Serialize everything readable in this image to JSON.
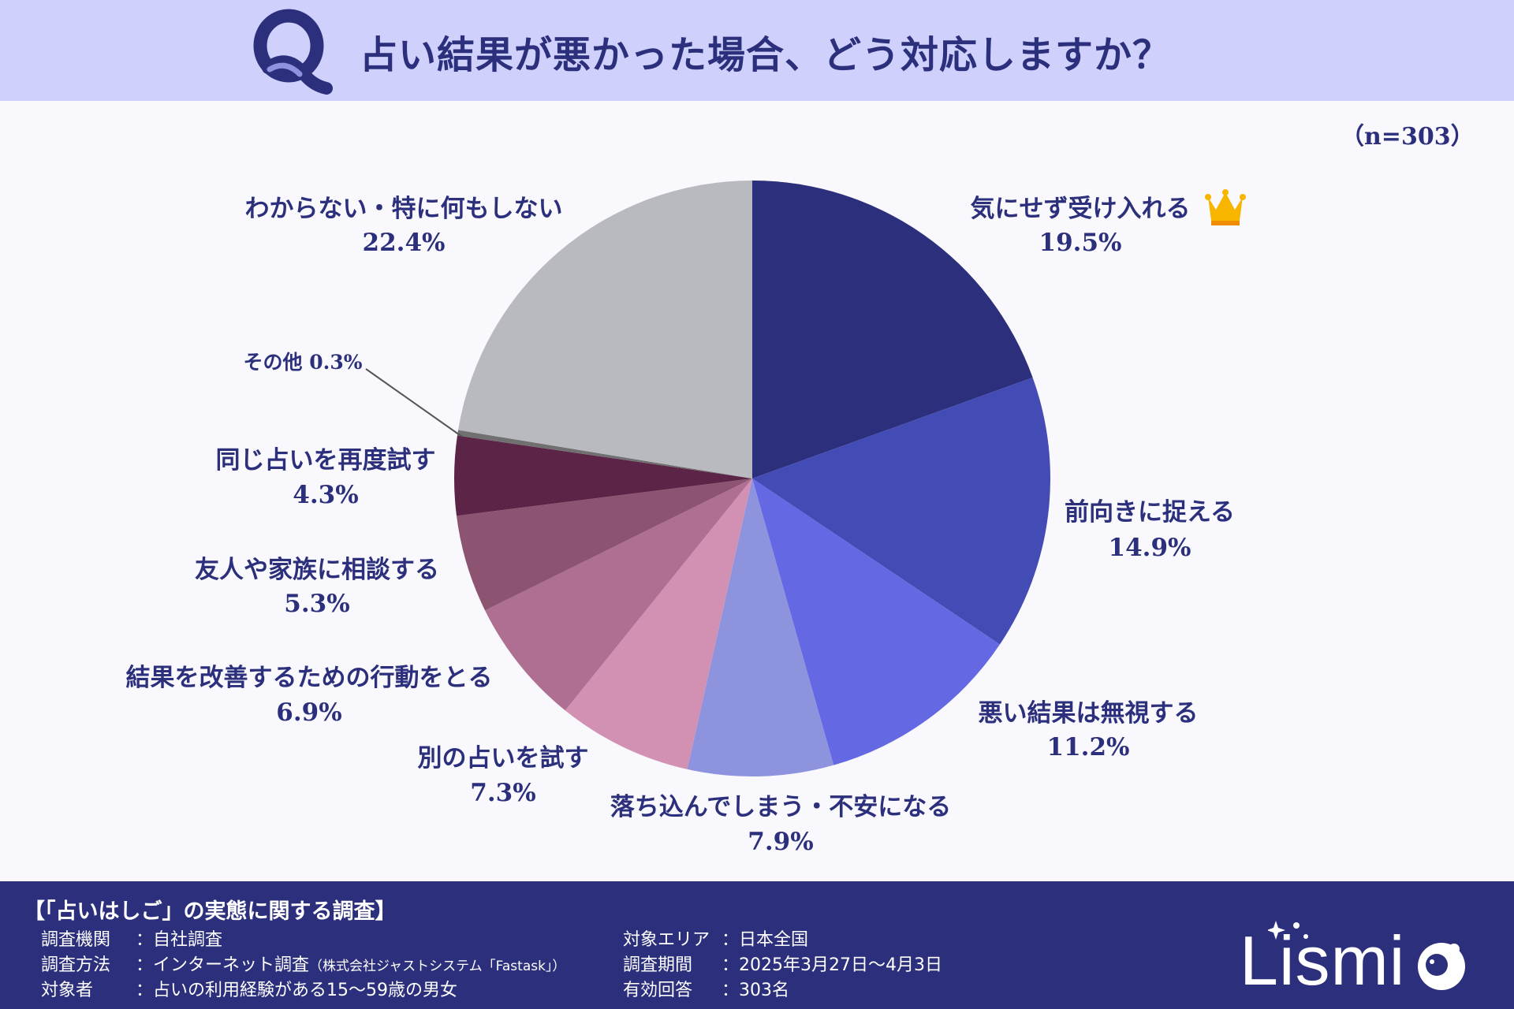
{
  "header": {
    "title": "占い結果が悪かった場合、どう対応しますか？"
  },
  "sample": "（n=303）",
  "chart_data": {
    "type": "pie",
    "start_angle": "12 o'clock",
    "direction": "clockwise",
    "slices": [
      {
        "label": "気にせず受け入れる",
        "value": 19.5,
        "value_text": "19.5%",
        "color": "#2c307c",
        "crown": true
      },
      {
        "label": "前向きに捉える",
        "value": 14.9,
        "value_text": "14.9%",
        "color": "#434bb4"
      },
      {
        "label": "悪い結果は無視する",
        "value": 11.2,
        "value_text": "11.2%",
        "color": "#6468e3"
      },
      {
        "label": "落ち込んでしまう・不安になる",
        "value": 7.9,
        "value_text": "7.9%",
        "color": "#8e93de"
      },
      {
        "label": "別の占いを試す",
        "value": 7.3,
        "value_text": "7.3%",
        "color": "#d291b3"
      },
      {
        "label": "結果を改善するための行動をとる",
        "value": 6.9,
        "value_text": "6.9%",
        "color": "#ae6f92"
      },
      {
        "label": "友人や家族に相談する",
        "value": 5.3,
        "value_text": "5.3%",
        "color": "#8c5471"
      },
      {
        "label": "同じ占いを再度試す",
        "value": 4.3,
        "value_text": "4.3%",
        "color": "#5c2446"
      },
      {
        "label": "その他",
        "value": 0.3,
        "value_text": "0.3%",
        "color": "#707070",
        "inline": true
      },
      {
        "label": "わからない・特に何もしない",
        "value": 22.4,
        "value_text": "22.4%",
        "color": "#b9babf"
      }
    ]
  },
  "footer": {
    "survey_title": "【「占いはしご」の実態に関する調査】",
    "left": [
      {
        "key": "調査機関",
        "value": "：自社調査",
        "note": ""
      },
      {
        "key": "調査方法",
        "value": "：インターネット調査",
        "note": "（株式会社ジャストシステム「Fastask」）"
      },
      {
        "key": "対象者",
        "value": "：占いの利用経験がある15～59歳の男女",
        "note": ""
      }
    ],
    "right": [
      {
        "key": "対象エリア",
        "value": "：日本全国"
      },
      {
        "key": "調査期間",
        "value": "：2025年3月27日～4月3日"
      },
      {
        "key": "有効回答",
        "value": "：303名"
      }
    ],
    "brand": "Lismi"
  }
}
